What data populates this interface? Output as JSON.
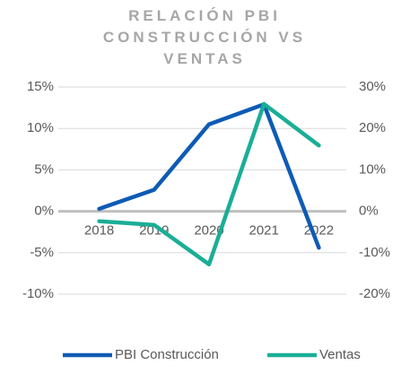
{
  "chart_data": {
    "type": "line",
    "title": "RELACIÓN PBI CONSTRUCCIÓN VS VENTAS",
    "categories": [
      "2018",
      "2019",
      "2020",
      "2021",
      "2022"
    ],
    "series": [
      {
        "name": "PBI Construcción",
        "color": "#0e5bb5",
        "values": [
          0.3,
          2.6,
          10.5,
          12.9,
          -4.4
        ]
      },
      {
        "name": "Ventas",
        "color": "#1aae96",
        "axis": "y2",
        "values": [
          -2.4,
          -3.3,
          -12.8,
          25.9,
          15.9
        ]
      }
    ],
    "ylim": [
      -10,
      15
    ],
    "yticks": [
      {
        "value": -10,
        "label": "-10%"
      },
      {
        "value": -5,
        "label": "-5%"
      },
      {
        "value": 0,
        "label": "0%"
      },
      {
        "value": 5,
        "label": "5%"
      },
      {
        "value": 10,
        "label": "10%"
      },
      {
        "value": 15,
        "label": "15%"
      }
    ],
    "y2lim": [
      -20,
      30
    ],
    "y2ticks": [
      {
        "value": -20,
        "label": "-20%"
      },
      {
        "value": -10,
        "label": "-10%"
      },
      {
        "value": 0,
        "label": "0%"
      },
      {
        "value": 10,
        "label": "10%"
      },
      {
        "value": 20,
        "label": "20%"
      },
      {
        "value": 30,
        "label": "30%"
      }
    ],
    "grid": true,
    "legend": "bottom"
  }
}
